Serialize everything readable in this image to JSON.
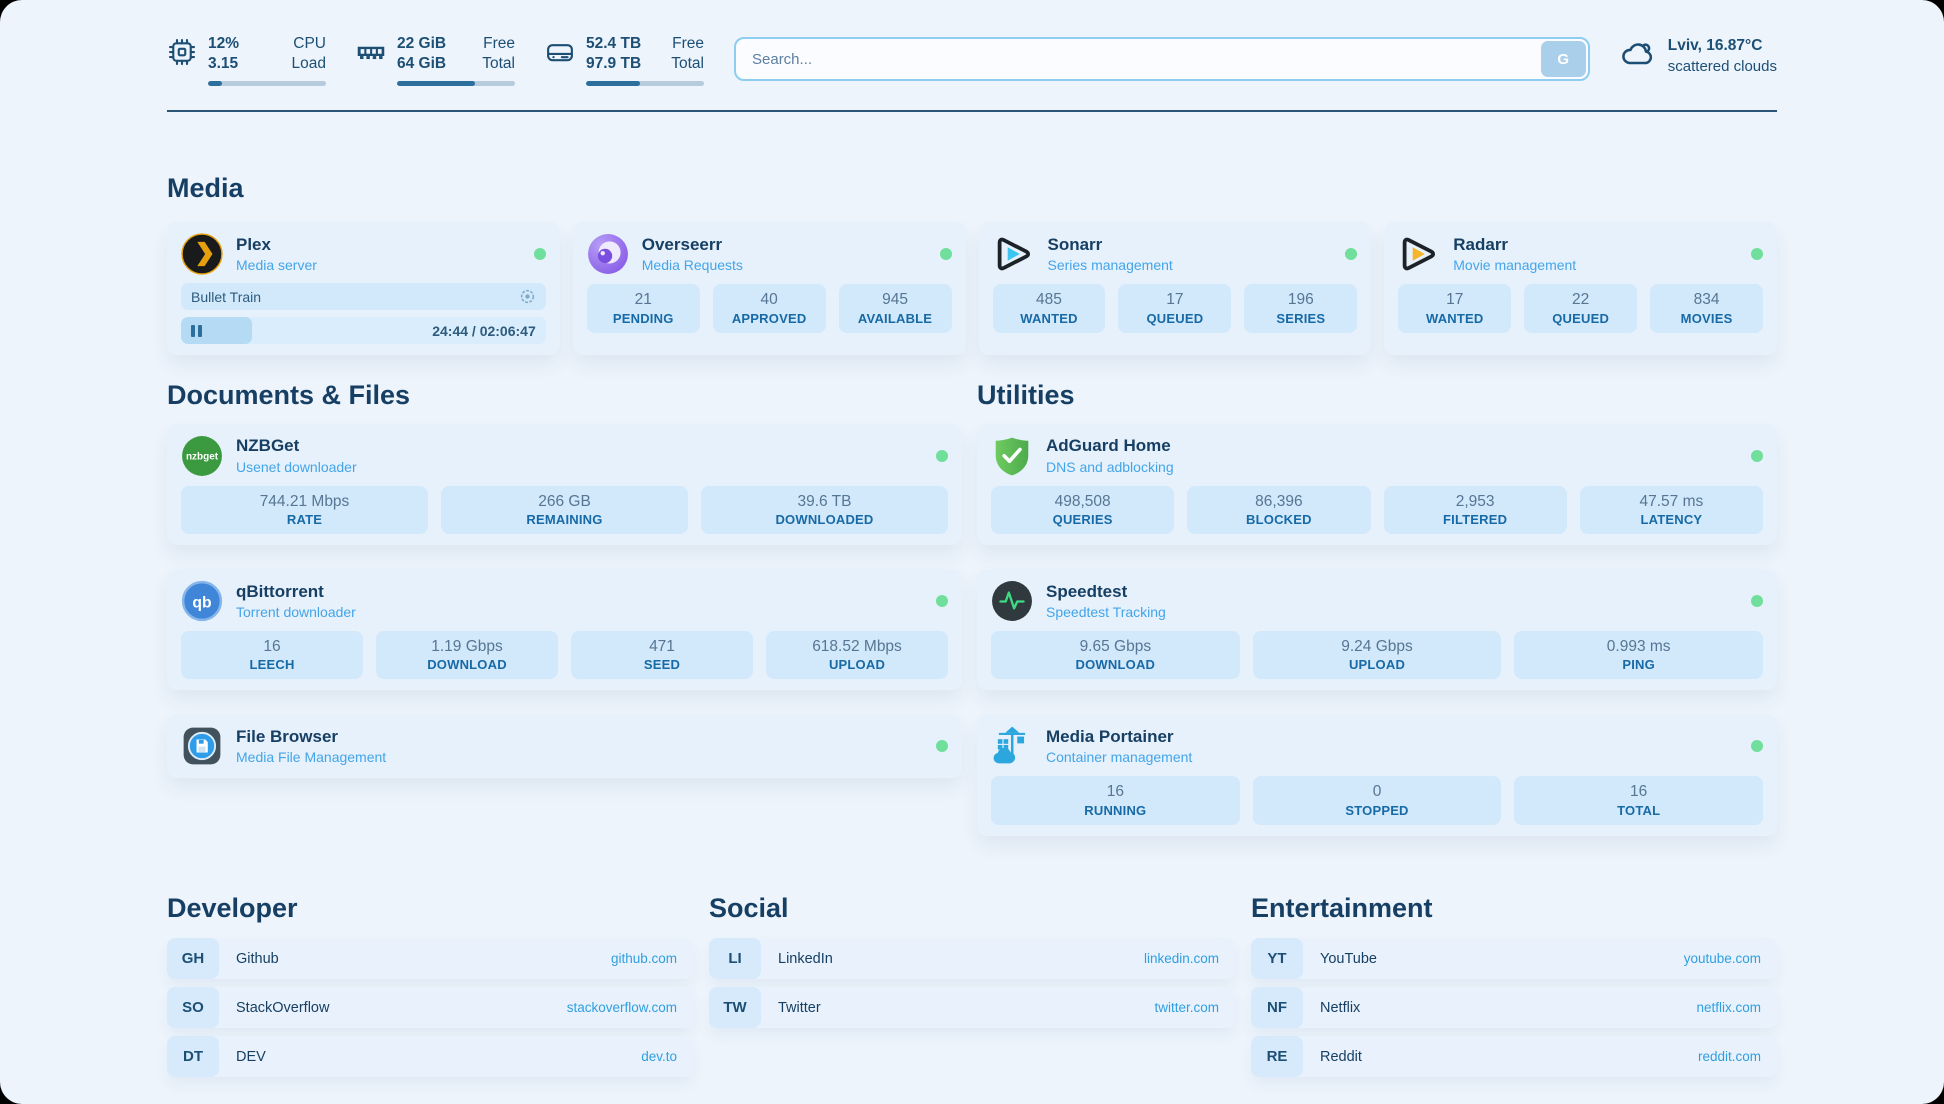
{
  "topbar": {
    "cpu": {
      "line1": "12%",
      "line2": "3.15",
      "label1": "CPU",
      "label2": "Load",
      "progress_percent": 12
    },
    "ram": {
      "line1": "22 GiB",
      "line2": "64 GiB",
      "label1": "Free",
      "label2": "Total",
      "progress_percent": 66
    },
    "disk": {
      "line1": "52.4 TB",
      "line2": "97.9 TB",
      "label1": "Free",
      "label2": "Total",
      "progress_percent": 46
    },
    "search": {
      "placeholder": "Search...",
      "provider_button": "G"
    },
    "weather": {
      "location_temp": "Lviv, 16.87°C",
      "condition": "scattered clouds"
    }
  },
  "sections": {
    "media": "Media",
    "documents": "Documents & Files",
    "utilities": "Utilities",
    "developer": "Developer",
    "social": "Social",
    "entertainment": "Entertainment"
  },
  "apps": {
    "plex": {
      "title": "Plex",
      "subtitle": "Media server",
      "now_playing": "Bullet Train",
      "time": "24:44 / 02:06:47",
      "progress_percent": 19.5
    },
    "overseerr": {
      "title": "Overseerr",
      "subtitle": "Media Requests",
      "stats": [
        {
          "value": "21",
          "label": "PENDING"
        },
        {
          "value": "40",
          "label": "APPROVED"
        },
        {
          "value": "945",
          "label": "AVAILABLE"
        }
      ]
    },
    "sonarr": {
      "title": "Sonarr",
      "subtitle": "Series management",
      "stats": [
        {
          "value": "485",
          "label": "WANTED"
        },
        {
          "value": "17",
          "label": "QUEUED"
        },
        {
          "value": "196",
          "label": "SERIES"
        }
      ]
    },
    "radarr": {
      "title": "Radarr",
      "subtitle": "Movie management",
      "stats": [
        {
          "value": "17",
          "label": "WANTED"
        },
        {
          "value": "22",
          "label": "QUEUED"
        },
        {
          "value": "834",
          "label": "MOVIES"
        }
      ]
    },
    "nzbget": {
      "title": "NZBGet",
      "subtitle": "Usenet downloader",
      "stats": [
        {
          "value": "744.21 Mbps",
          "label": "RATE"
        },
        {
          "value": "266 GB",
          "label": "REMAINING"
        },
        {
          "value": "39.6 TB",
          "label": "DOWNLOADED"
        }
      ]
    },
    "qbittorrent": {
      "title": "qBittorrent",
      "subtitle": "Torrent downloader",
      "stats": [
        {
          "value": "16",
          "label": "LEECH"
        },
        {
          "value": "1.19 Gbps",
          "label": "DOWNLOAD"
        },
        {
          "value": "471",
          "label": "SEED"
        },
        {
          "value": "618.52 Mbps",
          "label": "UPLOAD"
        }
      ]
    },
    "filebrowser": {
      "title": "File Browser",
      "subtitle": "Media File Management"
    },
    "adguard": {
      "title": "AdGuard Home",
      "subtitle": "DNS and adblocking",
      "stats": [
        {
          "value": "498,508",
          "label": "QUERIES"
        },
        {
          "value": "86,396",
          "label": "BLOCKED"
        },
        {
          "value": "2,953",
          "label": "FILTERED"
        },
        {
          "value": "47.57 ms",
          "label": "LATENCY"
        }
      ]
    },
    "speedtest": {
      "title": "Speedtest",
      "subtitle": "Speedtest Tracking",
      "stats": [
        {
          "value": "9.65 Gbps",
          "label": "DOWNLOAD"
        },
        {
          "value": "9.24 Gbps",
          "label": "UPLOAD"
        },
        {
          "value": "0.993 ms",
          "label": "PING"
        }
      ]
    },
    "portainer": {
      "title": "Media Portainer",
      "subtitle": "Container management",
      "stats": [
        {
          "value": "16",
          "label": "RUNNING"
        },
        {
          "value": "0",
          "label": "STOPPED"
        },
        {
          "value": "16",
          "label": "TOTAL"
        }
      ]
    }
  },
  "links": {
    "developer": [
      {
        "abbr": "GH",
        "label": "Github",
        "url": "github.com"
      },
      {
        "abbr": "SO",
        "label": "StackOverflow",
        "url": "stackoverflow.com"
      },
      {
        "abbr": "DT",
        "label": "DEV",
        "url": "dev.to"
      }
    ],
    "social": [
      {
        "abbr": "LI",
        "label": "LinkedIn",
        "url": "linkedin.com"
      },
      {
        "abbr": "TW",
        "label": "Twitter",
        "url": "twitter.com"
      }
    ],
    "entertainment": [
      {
        "abbr": "YT",
        "label": "YouTube",
        "url": "youtube.com"
      },
      {
        "abbr": "NF",
        "label": "Netflix",
        "url": "netflix.com"
      },
      {
        "abbr": "RE",
        "label": "Reddit",
        "url": "reddit.com"
      }
    ]
  },
  "colors": {
    "accent": "#2f9fe0",
    "status_ok": "#6fdf9b",
    "heading": "#173f63"
  }
}
